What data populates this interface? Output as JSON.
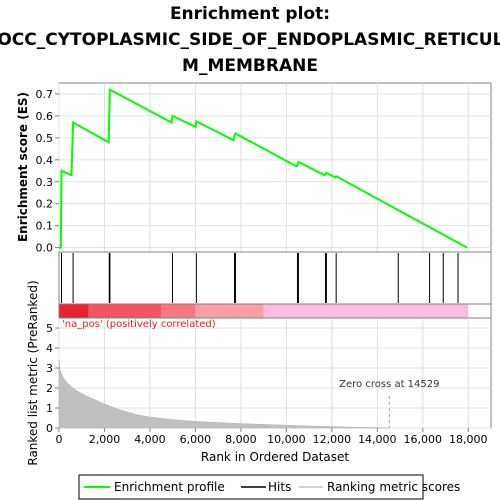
{
  "chart_data": {
    "type": "line",
    "title_lines": [
      "Enrichment plot:",
      "GOCC_CYTOPLASMIC_SIDE_OF_ENDOPLASMIC_RETICULU",
      "M_MEMBRANE"
    ],
    "xlabel": "Rank in Ordered Dataset",
    "ylabel_top": "Enrichment score (ES)",
    "ylabel_bottom": "Ranked list metric (PreRanked)",
    "xlim": [
      0,
      19000
    ],
    "x_ticks": [
      0,
      2000,
      4000,
      6000,
      8000,
      10000,
      12000,
      14000,
      16000,
      18000
    ],
    "x_tick_labels": [
      "0",
      "2,000",
      "4,000",
      "6,000",
      "8,000",
      "10,000",
      "12,000",
      "14,000",
      "16,000",
      "18,000"
    ],
    "es_ylim": [
      -0.02,
      0.75
    ],
    "es_ticks": [
      0.0,
      0.1,
      0.2,
      0.3,
      0.4,
      0.5,
      0.6,
      0.7
    ],
    "es_tick_labels": [
      "0.0",
      "0.1",
      "0.2",
      "0.3",
      "0.4",
      "0.5",
      "0.6",
      "0.7"
    ],
    "metric_ylim": [
      0,
      5.5
    ],
    "metric_ticks": [
      0,
      1,
      2,
      3,
      4,
      5
    ],
    "metric_tick_labels": [
      "0",
      "1",
      "2",
      "3",
      "4",
      "5"
    ],
    "enrichment_profile": {
      "name": "Enrichment profile",
      "color": "#00ff00",
      "points": [
        [
          0,
          0.0
        ],
        [
          80,
          0.0
        ],
        [
          110,
          0.35
        ],
        [
          550,
          0.33
        ],
        [
          620,
          0.57
        ],
        [
          2180,
          0.48
        ],
        [
          2210,
          0.6
        ],
        [
          2240,
          0.72
        ],
        [
          4950,
          0.57
        ],
        [
          4990,
          0.6
        ],
        [
          6000,
          0.55
        ],
        [
          6040,
          0.575
        ],
        [
          7680,
          0.49
        ],
        [
          7720,
          0.51
        ],
        [
          7760,
          0.52
        ],
        [
          10450,
          0.37
        ],
        [
          10490,
          0.38
        ],
        [
          10530,
          0.39
        ],
        [
          11680,
          0.33
        ],
        [
          11720,
          0.335
        ],
        [
          11760,
          0.34
        ],
        [
          12150,
          0.32
        ],
        [
          12190,
          0.325
        ],
        [
          17950,
          0.0
        ]
      ]
    },
    "hits": [
      110,
      620,
      2210,
      2240,
      4990,
      6040,
      7720,
      7760,
      10490,
      10530,
      11720,
      11760,
      12190,
      14920,
      16300,
      16900,
      17550
    ],
    "metric_scores": {
      "name": "Ranking metric scores",
      "color": "#c0c0c0",
      "points": [
        [
          0,
          3.4
        ],
        [
          50,
          2.9
        ],
        [
          150,
          2.6
        ],
        [
          300,
          2.35
        ],
        [
          500,
          2.1
        ],
        [
          800,
          1.85
        ],
        [
          1200,
          1.6
        ],
        [
          1600,
          1.4
        ],
        [
          2000,
          1.2
        ],
        [
          2500,
          0.98
        ],
        [
          3000,
          0.8
        ],
        [
          3500,
          0.65
        ],
        [
          4000,
          0.55
        ],
        [
          5000,
          0.42
        ],
        [
          6000,
          0.33
        ],
        [
          7000,
          0.27
        ],
        [
          8000,
          0.22
        ],
        [
          9000,
          0.18
        ],
        [
          10000,
          0.14
        ],
        [
          11000,
          0.1
        ],
        [
          12000,
          0.07
        ],
        [
          13000,
          0.04
        ],
        [
          14000,
          0.02
        ],
        [
          14529,
          0.0
        ]
      ]
    },
    "heat_bar": [
      {
        "from": 0,
        "to": 1300,
        "color": "#e8222e"
      },
      {
        "from": 1300,
        "to": 4500,
        "color": "#f25560"
      },
      {
        "from": 4500,
        "to": 6000,
        "color": "#f77880"
      },
      {
        "from": 6000,
        "to": 9000,
        "color": "#fc9ea3"
      },
      {
        "from": 9000,
        "to": 18000,
        "color": "#fbbde0"
      }
    ],
    "annotations": {
      "positive": "'na_pos' (positively correlated)",
      "positive_color": "#e02020",
      "zero_cross": "Zero cross at 14529",
      "zero_cross_x": 14529
    },
    "legend": {
      "placement": "bottom",
      "items": [
        {
          "label": "Enrichment profile",
          "color": "#00ff00",
          "kind": "line"
        },
        {
          "label": "Hits",
          "color": "#000000",
          "kind": "line"
        },
        {
          "label": "Ranking metric scores",
          "color": "#c0c0c0",
          "kind": "line"
        }
      ]
    },
    "grid": true
  }
}
